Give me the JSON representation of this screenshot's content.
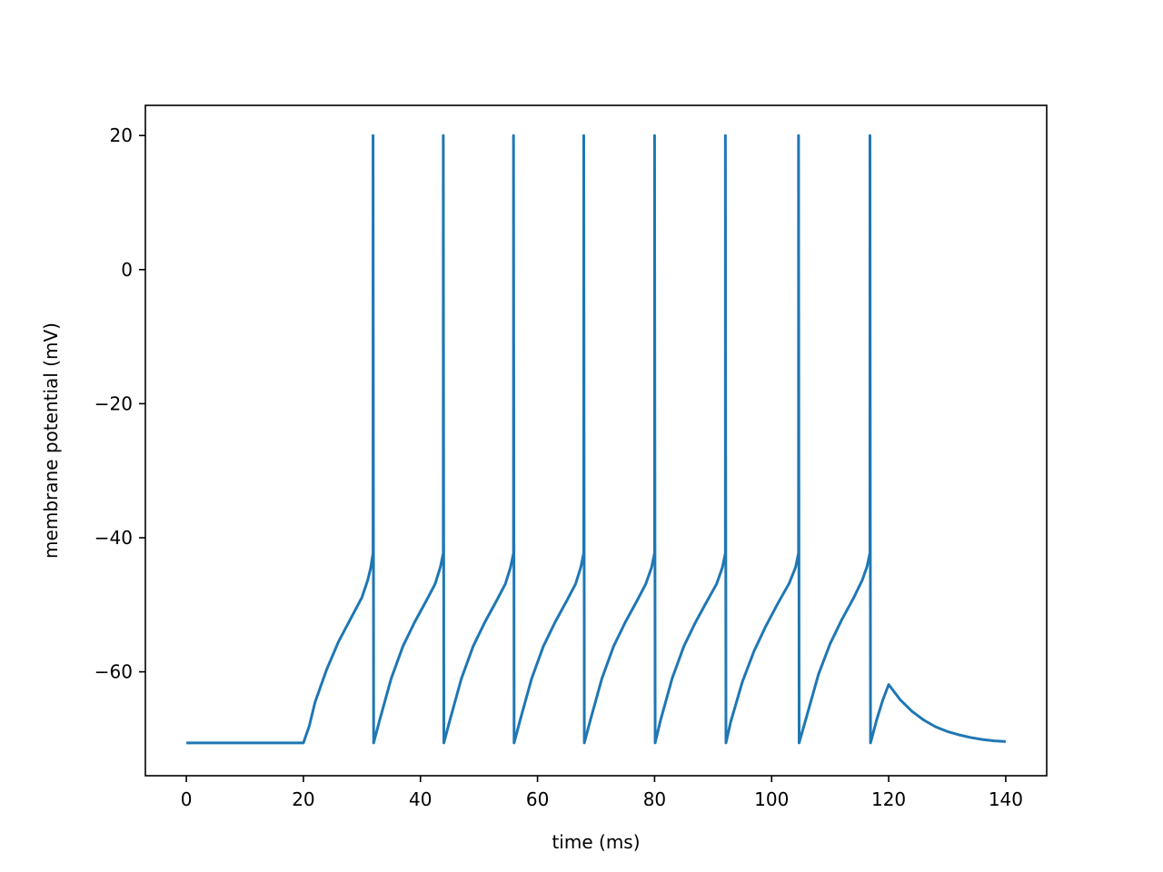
{
  "chart_data": {
    "type": "line",
    "title": "",
    "xlabel": "time (ms)",
    "ylabel": "membrane potential (mV)",
    "xlim": [
      -7,
      147
    ],
    "ylim": [
      -75.5,
      24.5
    ],
    "xticks": [
      0,
      20,
      40,
      60,
      80,
      100,
      120,
      140
    ],
    "yticks": [
      -60,
      -40,
      -20,
      0,
      20
    ],
    "ytick_labels": [
      "−60",
      "−40",
      "−20",
      "0",
      "20"
    ],
    "xtick_labels": [
      "0",
      "20",
      "40",
      "60",
      "80",
      "100",
      "120",
      "140"
    ],
    "grid": false,
    "legend": "none",
    "line_color": "#1f77b4",
    "model": {
      "rest_mv": -70.6,
      "spike_peak_mv": 20,
      "input_onset_ms": 20,
      "input_offset_ms": 120,
      "spike_times_ms": [
        31.9,
        43.9,
        55.9,
        67.9,
        80.0,
        92.1,
        104.6,
        116.8
      ],
      "post_stimulus_peak_mv": -61.9
    },
    "series": [
      {
        "values_description_points": [
          [
            0,
            -70.6
          ],
          [
            20,
            -70.6
          ],
          [
            21,
            -68.1
          ],
          [
            22,
            -64.5
          ],
          [
            24,
            -59.6
          ],
          [
            26,
            -55.5
          ],
          [
            28,
            -52.2
          ],
          [
            30,
            -48.9
          ],
          [
            31,
            -46.3
          ],
          [
            31.5,
            -44.5
          ],
          [
            31.9,
            -42.3
          ],
          [
            31.9,
            20
          ],
          [
            32.0,
            -70.6
          ],
          [
            33,
            -67.3
          ],
          [
            35,
            -61.0
          ],
          [
            37,
            -56.2
          ],
          [
            39,
            -52.6
          ],
          [
            41,
            -49.4
          ],
          [
            42.5,
            -46.9
          ],
          [
            43.4,
            -44.4
          ],
          [
            43.9,
            -42.3
          ],
          [
            43.9,
            20
          ],
          [
            44.0,
            -70.6
          ],
          [
            45,
            -67.3
          ],
          [
            47,
            -61.0
          ],
          [
            49,
            -56.2
          ],
          [
            51,
            -52.6
          ],
          [
            53,
            -49.4
          ],
          [
            54.5,
            -46.9
          ],
          [
            55.4,
            -44.4
          ],
          [
            55.9,
            -42.3
          ],
          [
            55.9,
            20
          ],
          [
            56.0,
            -70.6
          ],
          [
            57,
            -67.3
          ],
          [
            59,
            -61.0
          ],
          [
            61,
            -56.2
          ],
          [
            63,
            -52.6
          ],
          [
            65,
            -49.4
          ],
          [
            66.5,
            -46.9
          ],
          [
            67.4,
            -44.4
          ],
          [
            67.9,
            -42.3
          ],
          [
            67.9,
            20
          ],
          [
            68.0,
            -70.6
          ],
          [
            69,
            -67.3
          ],
          [
            71,
            -61.0
          ],
          [
            73,
            -56.2
          ],
          [
            75,
            -52.6
          ],
          [
            77,
            -49.4
          ],
          [
            78.5,
            -46.9
          ],
          [
            79.5,
            -44.4
          ],
          [
            80.0,
            -42.3
          ],
          [
            80.0,
            20
          ],
          [
            80.1,
            -70.6
          ],
          [
            81,
            -67.3
          ],
          [
            83,
            -61.0
          ],
          [
            85,
            -56.2
          ],
          [
            87,
            -52.6
          ],
          [
            89,
            -49.4
          ],
          [
            90.6,
            -46.9
          ],
          [
            91.6,
            -44.4
          ],
          [
            92.1,
            -42.3
          ],
          [
            92.1,
            20
          ],
          [
            92.2,
            -70.6
          ],
          [
            93,
            -67.5
          ],
          [
            95,
            -61.5
          ],
          [
            97,
            -56.9
          ],
          [
            99,
            -53.2
          ],
          [
            101,
            -49.9
          ],
          [
            103,
            -46.8
          ],
          [
            104.1,
            -44.4
          ],
          [
            104.6,
            -42.3
          ],
          [
            104.6,
            20
          ],
          [
            104.7,
            -70.6
          ],
          [
            106,
            -66.6
          ],
          [
            108,
            -60.4
          ],
          [
            110,
            -55.8
          ],
          [
            112,
            -52.2
          ],
          [
            114,
            -49.0
          ],
          [
            115.5,
            -46.3
          ],
          [
            116.3,
            -44.3
          ],
          [
            116.8,
            -42.3
          ],
          [
            116.8,
            20
          ],
          [
            116.9,
            -70.6
          ],
          [
            118,
            -67.0
          ],
          [
            119,
            -64.2
          ],
          [
            120,
            -61.9
          ],
          [
            122,
            -64.2
          ],
          [
            124,
            -65.9
          ],
          [
            126,
            -67.2
          ],
          [
            128,
            -68.2
          ],
          [
            130,
            -68.9
          ],
          [
            132,
            -69.4
          ],
          [
            134,
            -69.8
          ],
          [
            136,
            -70.1
          ],
          [
            138,
            -70.3
          ],
          [
            140,
            -70.4
          ]
        ]
      }
    ]
  }
}
